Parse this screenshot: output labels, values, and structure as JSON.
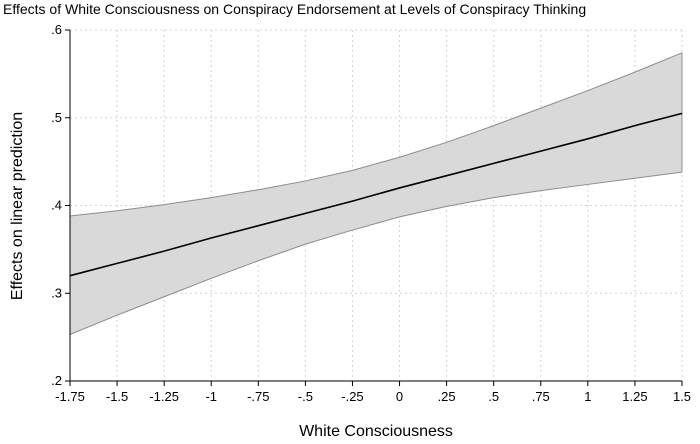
{
  "chart_data": {
    "type": "line",
    "title": "Effects of White Consciousness on Conspiracy Endorsement at Levels of Conspiracy Thinking",
    "xlabel": "White Consciousness",
    "ylabel": "Effects on linear prediction",
    "xlim": [
      -1.75,
      1.5
    ],
    "ylim": [
      0.2,
      0.6
    ],
    "x_ticks": [
      -1.75,
      -1.5,
      -1.25,
      -1,
      -0.75,
      -0.5,
      -0.25,
      0,
      0.25,
      0.5,
      0.75,
      1,
      1.25,
      1.5
    ],
    "x_tick_labels": [
      "-1.75",
      "-1.5",
      "-1.25",
      "-1",
      "-.75",
      "-.5",
      "-.25",
      "0",
      ".25",
      ".5",
      ".75",
      "1",
      "1.25",
      "1.5"
    ],
    "y_ticks": [
      0.2,
      0.3,
      0.4,
      0.5,
      0.6
    ],
    "y_tick_labels": [
      ".2",
      ".3",
      ".4",
      ".5",
      ".6"
    ],
    "grid": true,
    "legend": "none",
    "series": [
      {
        "x": [
          -1.75,
          -1.5,
          -1.25,
          -1,
          -0.75,
          -0.5,
          -0.25,
          0,
          0.25,
          0.5,
          0.75,
          1,
          1.25,
          1.5
        ],
        "y": [
          0.32,
          0.334,
          0.348,
          0.363,
          0.377,
          0.391,
          0.405,
          0.42,
          0.434,
          0.448,
          0.462,
          0.476,
          0.491,
          0.505
        ],
        "ci_lower": [
          0.253,
          0.275,
          0.296,
          0.317,
          0.337,
          0.356,
          0.372,
          0.387,
          0.399,
          0.409,
          0.417,
          0.424,
          0.431,
          0.438
        ],
        "ci_upper": [
          0.388,
          0.394,
          0.401,
          0.409,
          0.418,
          0.428,
          0.44,
          0.455,
          0.472,
          0.491,
          0.511,
          0.531,
          0.552,
          0.574
        ]
      }
    ],
    "colors": {
      "line": "#000000",
      "ci_fill": "#d9d9d9",
      "ci_edge": "#8c8c8c",
      "grid": "#d4d4d4",
      "axis": "#000000"
    }
  }
}
